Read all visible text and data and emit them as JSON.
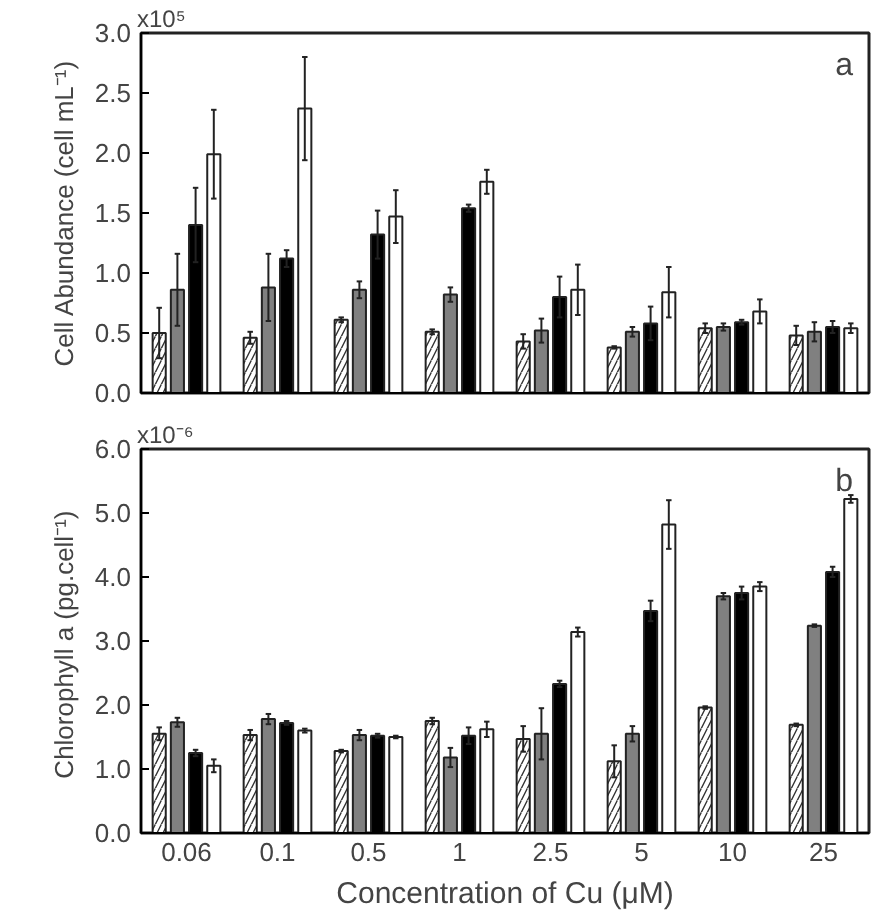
{
  "chart_data": [
    {
      "type": "bar",
      "ylabel": "Cell Abundance (cell mL⁻¹)",
      "annotations": [
        "x10⁵",
        "a"
      ],
      "categories": [
        "0.06",
        "0.1",
        "0.5",
        "1",
        "2.5",
        "5",
        "10",
        "25"
      ],
      "tick_labels": "y",
      "grid": false,
      "ylim": [
        0,
        3.0
      ],
      "yticks": [
        {
          "value": 0,
          "label": "0.0"
        },
        0.5,
        {
          "value": 1,
          "label": "1.0"
        },
        1.5,
        {
          "value": 2,
          "label": "2.0"
        },
        2.5,
        {
          "value": 3,
          "label": "3.0"
        }
      ],
      "series": [
        {
          "color": "#ffffff",
          "values": [
            0.5,
            0.46,
            0.61,
            0.51,
            0.43,
            0.38,
            0.54,
            0.48
          ],
          "errors": [
            0.21,
            0.05,
            0.02,
            0.02,
            0.06,
            0.01,
            0.04,
            0.08
          ]
        },
        {
          "color": "#808080",
          "values": [
            0.86,
            0.88,
            0.86,
            0.82,
            0.52,
            0.51,
            0.55,
            0.51
          ],
          "errors": [
            0.3,
            0.28,
            0.07,
            0.06,
            0.1,
            0.04,
            0.03,
            0.08
          ]
        },
        {
          "color": "#000000",
          "values": [
            1.4,
            1.12,
            1.32,
            1.54,
            0.8,
            0.58,
            0.59,
            0.55
          ],
          "errors": [
            0.31,
            0.07,
            0.2,
            0.03,
            0.17,
            0.14,
            0.02,
            0.05
          ]
        },
        {
          "color": "#ffffff",
          "values": [
            1.99,
            2.37,
            1.47,
            1.76,
            0.86,
            0.84,
            0.68,
            0.54
          ],
          "errors": [
            0.37,
            0.43,
            0.22,
            0.1,
            0.21,
            0.21,
            0.1,
            0.04
          ]
        }
      ]
    },
    {
      "type": "bar",
      "xlabel": "Concentration of Cu (μM)",
      "ylabel": "Chlorophyll a  (pg.cell⁻¹)",
      "annotations": [
        "x10⁻⁶",
        "b"
      ],
      "categories": [
        "0.06",
        "0.1",
        "0.5",
        "1",
        "2.5",
        "5",
        "10",
        "25"
      ],
      "grid": false,
      "ylim": [
        0,
        6.0
      ],
      "yticks": [
        {
          "value": 0,
          "label": "0.0"
        },
        {
          "value": 1,
          "label": "1.0"
        },
        {
          "value": 2,
          "label": "2.0"
        },
        {
          "value": 3,
          "label": "3.0"
        },
        {
          "value": 4,
          "label": "4.0"
        },
        {
          "value": 5,
          "label": "5.0"
        },
        {
          "value": 6,
          "label": "6.0"
        }
      ],
      "series": [
        {
          "color": "#ffffff",
          "values": [
            1.55,
            1.53,
            1.28,
            1.75,
            1.47,
            1.12,
            1.96,
            1.69
          ],
          "errors": [
            0.1,
            0.08,
            0.02,
            0.05,
            0.2,
            0.25,
            0.02,
            0.02
          ]
        },
        {
          "color": "#808080",
          "values": [
            1.73,
            1.78,
            1.53,
            1.18,
            1.55,
            1.55,
            3.7,
            3.24
          ],
          "errors": [
            0.07,
            0.08,
            0.08,
            0.15,
            0.4,
            0.12,
            0.05,
            0.02
          ]
        },
        {
          "color": "#000000",
          "values": [
            1.25,
            1.72,
            1.52,
            1.52,
            2.33,
            3.47,
            3.75,
            4.08
          ],
          "errors": [
            0.05,
            0.03,
            0.03,
            0.13,
            0.05,
            0.16,
            0.1,
            0.08
          ]
        },
        {
          "color": "#ffffff",
          "values": [
            1.05,
            1.6,
            1.5,
            1.62,
            3.14,
            4.82,
            3.85,
            5.22
          ],
          "errors": [
            0.1,
            0.03,
            0.02,
            0.12,
            0.07,
            0.38,
            0.07,
            0.06
          ]
        }
      ]
    }
  ]
}
